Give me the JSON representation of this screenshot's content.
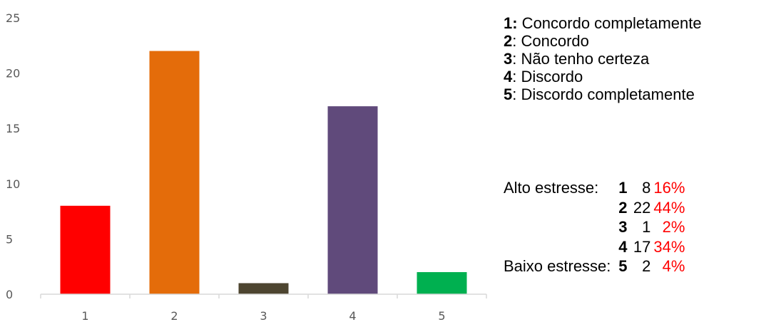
{
  "chart_data": {
    "type": "bar",
    "categories": [
      "1",
      "2",
      "3",
      "4",
      "5"
    ],
    "values": [
      8,
      22,
      1,
      17,
      2
    ],
    "colors": [
      "#ff0000",
      "#e46c0a",
      "#4d4530",
      "#604a7b",
      "#00b050"
    ],
    "ylim": [
      0,
      25
    ],
    "yticks": [
      0,
      5,
      10,
      15,
      20,
      25
    ],
    "grid": false,
    "title": "",
    "xlabel": "",
    "ylabel": ""
  },
  "legend": {
    "items": [
      {
        "code": "1:",
        "label": " Concordo completamente"
      },
      {
        "code": "2",
        "label": ": Concordo"
      },
      {
        "code": "3",
        "label": ": Não tenho certeza"
      },
      {
        "code": "4",
        "label": ": Discordo"
      },
      {
        "code": "5",
        "label": ": Discordo completamente"
      }
    ]
  },
  "stats": {
    "rows": [
      {
        "group": "Alto estresse:",
        "code": "1",
        "count": "8",
        "pct": "16%"
      },
      {
        "group": "",
        "code": "2",
        "count": "22",
        "pct": "44%"
      },
      {
        "group": "",
        "code": "3",
        "count": "1",
        "pct": "2%"
      },
      {
        "group": "",
        "code": "4",
        "count": "17",
        "pct": "34%"
      },
      {
        "group": "Baixo estresse:",
        "code": "5",
        "count": "2",
        "pct": "4%"
      }
    ]
  }
}
